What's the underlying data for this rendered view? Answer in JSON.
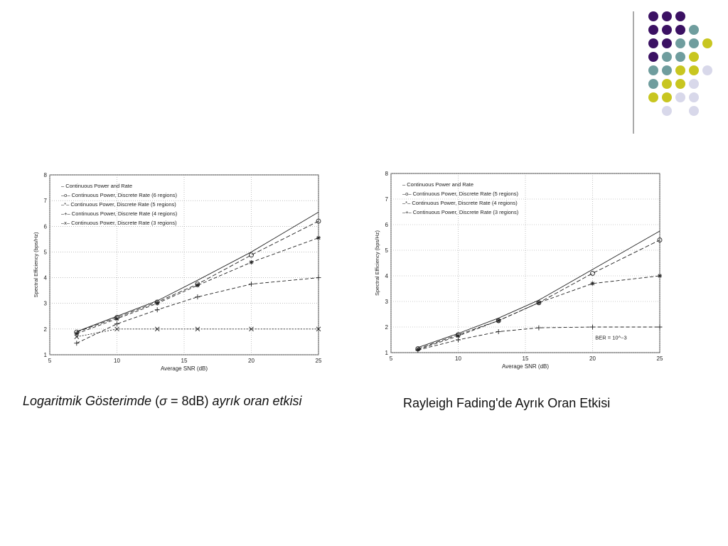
{
  "decoration": {
    "colors": {
      "purple": "#3b1163",
      "teal": "#6f9d9e",
      "yellow": "#c8c620",
      "lavender": "#d8d8ea",
      "line": "#555555"
    },
    "dot_grid": [
      [
        "purple",
        "purple",
        "purple",
        "",
        "",
        ""
      ],
      [
        "purple",
        "purple",
        "purple",
        "teal",
        "",
        ""
      ],
      [
        "purple",
        "purple",
        "teal",
        "teal",
        "yellow",
        ""
      ],
      [
        "purple",
        "teal",
        "teal",
        "yellow",
        "",
        ""
      ],
      [
        "teal",
        "teal",
        "yellow",
        "yellow",
        "lavender",
        ""
      ],
      [
        "teal",
        "yellow",
        "yellow",
        "lavender",
        "",
        ""
      ],
      [
        "yellow",
        "yellow",
        "lavender",
        "lavender",
        "",
        ""
      ],
      [
        "",
        "lavender",
        "",
        "lavender",
        "",
        ""
      ]
    ]
  },
  "captions": {
    "left": {
      "part1": "Logaritmik Gösterimde",
      "part2": " (",
      "part3": "σ",
      "part4": " = 8dB) ",
      "part5": "ayrık oran etkisi"
    },
    "right": "Rayleigh Fading'de Ayrık Oran Etkisi"
  },
  "chart_data": [
    {
      "type": "line",
      "title": "",
      "xlabel": "Average SNR (dB)",
      "ylabel": "Spectral Efficiency (bps/Hz)",
      "xlim": [
        5,
        25
      ],
      "ylim": [
        1,
        8
      ],
      "xticks": [
        5,
        10,
        15,
        20,
        25
      ],
      "yticks": [
        1,
        2,
        3,
        4,
        5,
        6,
        7,
        8
      ],
      "grid": true,
      "legend_position": "top-left",
      "series": [
        {
          "name": "Continuous Power and Rate",
          "legend_symbol": "–",
          "marker": "none",
          "x": [
            7,
            10,
            13,
            16,
            20,
            25
          ],
          "y": [
            1.9,
            2.5,
            3.1,
            3.9,
            5.0,
            6.55
          ]
        },
        {
          "name": "Continuous Power, Discrete Rate (6 regions)",
          "legend_symbol": "–o–",
          "marker": "o",
          "x": [
            7,
            10,
            13,
            16,
            20,
            25
          ],
          "y": [
            1.88,
            2.45,
            3.05,
            3.75,
            4.88,
            6.2
          ]
        },
        {
          "name": "Continuous Power, Discrete Rate (5 regions)",
          "legend_symbol": "–*–",
          "marker": "*",
          "x": [
            7,
            10,
            13,
            16,
            20,
            25
          ],
          "y": [
            1.82,
            2.4,
            3.0,
            3.7,
            4.6,
            5.55
          ]
        },
        {
          "name": "Continuous Power, Discrete Rate (4 regions)",
          "legend_symbol": "–+–",
          "marker": "+",
          "x": [
            7,
            10,
            13,
            16,
            20,
            25
          ],
          "y": [
            1.45,
            2.2,
            2.75,
            3.25,
            3.75,
            4.0
          ]
        },
        {
          "name": "Continuous Power, Discrete Rate (3 regions)",
          "legend_symbol": "–x–",
          "marker": "x",
          "x": [
            7,
            10,
            13,
            16,
            20,
            25
          ],
          "y": [
            1.7,
            2.0,
            2.0,
            2.0,
            2.0,
            2.0
          ]
        }
      ]
    },
    {
      "type": "line",
      "title": "",
      "xlabel": "Average SNR (dB)",
      "ylabel": "Spectral Efficiency (bps/Hz)",
      "xlim": [
        5,
        25
      ],
      "ylim": [
        1,
        8
      ],
      "xticks": [
        5,
        10,
        15,
        20,
        25
      ],
      "yticks": [
        1,
        2,
        3,
        4,
        5,
        6,
        7,
        8
      ],
      "grid": true,
      "legend_position": "top-left",
      "annotation": "BER = 10^−3",
      "series": [
        {
          "name": "Continuous Power and Rate",
          "legend_symbol": "–",
          "marker": "none",
          "x": [
            7,
            10,
            13,
            16,
            20,
            25
          ],
          "y": [
            1.2,
            1.75,
            2.35,
            3.05,
            4.25,
            5.75
          ]
        },
        {
          "name": "Continuous Power, Discrete Rate (5 regions)",
          "legend_symbol": "–o–",
          "marker": "o",
          "x": [
            7,
            10,
            13,
            16,
            20,
            25
          ],
          "y": [
            1.15,
            1.7,
            2.25,
            2.95,
            4.1,
            5.4
          ]
        },
        {
          "name": "Continuous Power, Discrete Rate (4 regions)",
          "legend_symbol": "–*–",
          "marker": "*",
          "x": [
            7,
            10,
            13,
            16,
            20,
            25
          ],
          "y": [
            1.12,
            1.65,
            2.25,
            2.95,
            3.7,
            4.0
          ]
        },
        {
          "name": "Continuous Power, Discrete Rate (3 regions)",
          "legend_symbol": "–+–",
          "marker": "+",
          "x": [
            7,
            10,
            13,
            16,
            20,
            25
          ],
          "y": [
            1.1,
            1.5,
            1.82,
            1.97,
            2.0,
            2.0
          ]
        }
      ]
    }
  ]
}
